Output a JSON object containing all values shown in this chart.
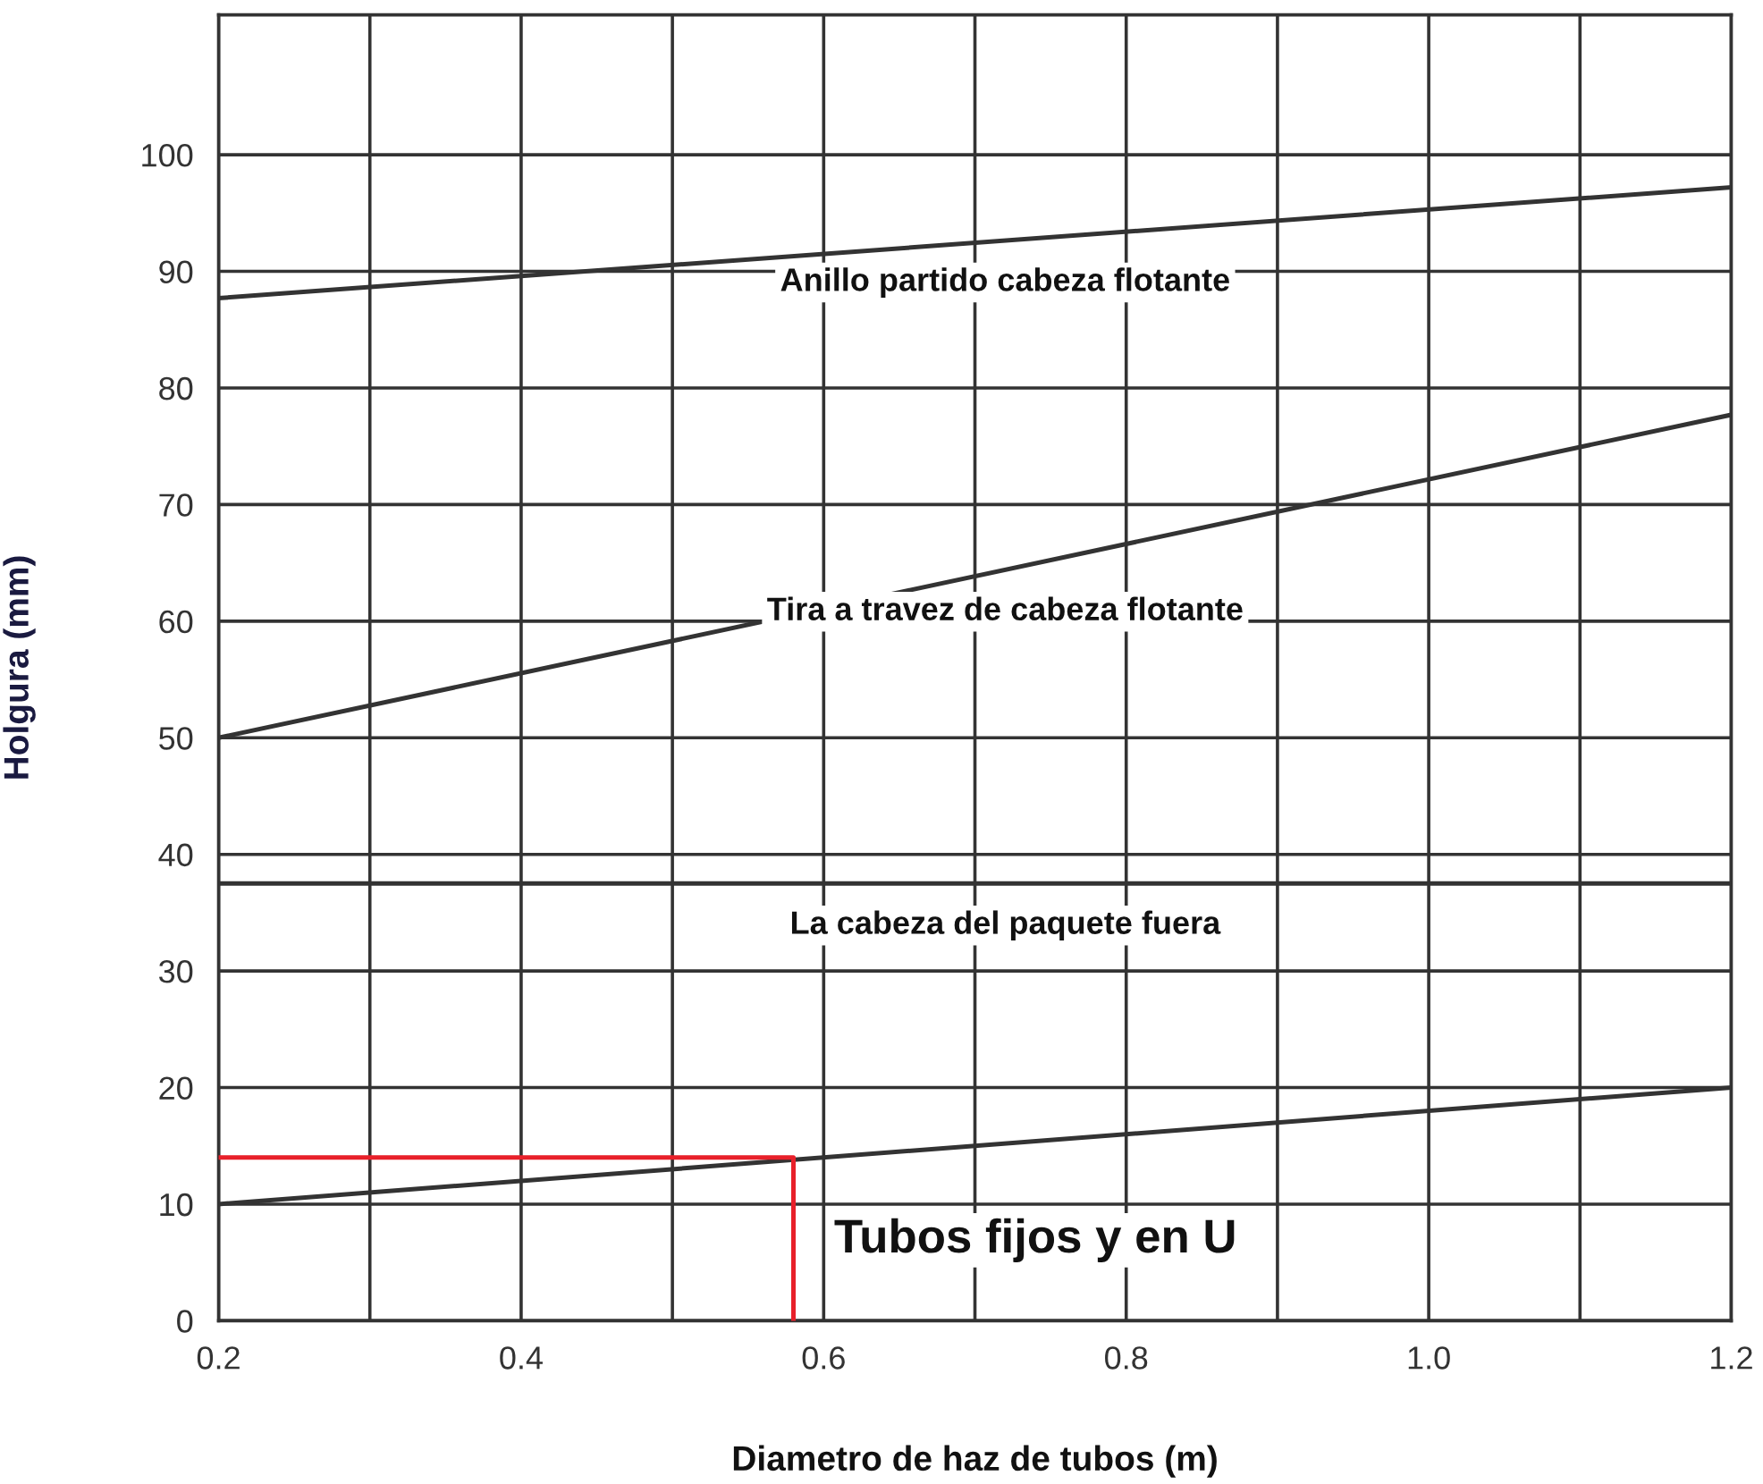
{
  "chart_data": {
    "type": "line",
    "xlabel": "Diametro de haz de tubos (m)",
    "ylabel": "Holgura (mm)",
    "xlim": [
      0.2,
      1.2
    ],
    "ylim": [
      0,
      112
    ],
    "xticks": [
      0.2,
      {
        "value": 0.3,
        "label": null
      },
      0.4,
      {
        "value": 0.5,
        "label": null
      },
      0.6,
      {
        "value": 0.7,
        "label": null
      },
      0.8,
      {
        "value": 0.9,
        "label": null
      },
      {
        "value": 1.0,
        "label": "1.0"
      },
      {
        "value": 1.1,
        "label": null
      },
      1.2
    ],
    "yticks": [
      0,
      10,
      20,
      30,
      40,
      50,
      60,
      70,
      80,
      90,
      100
    ],
    "grid": true,
    "marker": "none",
    "line_style": "solid",
    "series": [
      {
        "name": "Anillo partido cabeza flotante",
        "color": "#333333",
        "x": [
          0.2,
          1.2
        ],
        "values": [
          87.7,
          97.2
        ]
      },
      {
        "name": "Tira a travez de cabeza flotante",
        "color": "#333333",
        "x": [
          0.2,
          1.2
        ],
        "values": [
          50,
          77.7
        ]
      },
      {
        "name": "La cabeza del paquete fuera",
        "color": "#333333",
        "x": [
          0.2,
          1.2
        ],
        "values": [
          37.5,
          37.5
        ]
      },
      {
        "name": "Tubos fijos y en U",
        "color": "#333333",
        "x": [
          0.2,
          1.2
        ],
        "values": [
          10,
          20
        ]
      },
      {
        "color": "#e8202a",
        "x": [
          0.2,
          0.58,
          0.58
        ],
        "values": [
          14,
          14,
          0
        ]
      }
    ]
  }
}
